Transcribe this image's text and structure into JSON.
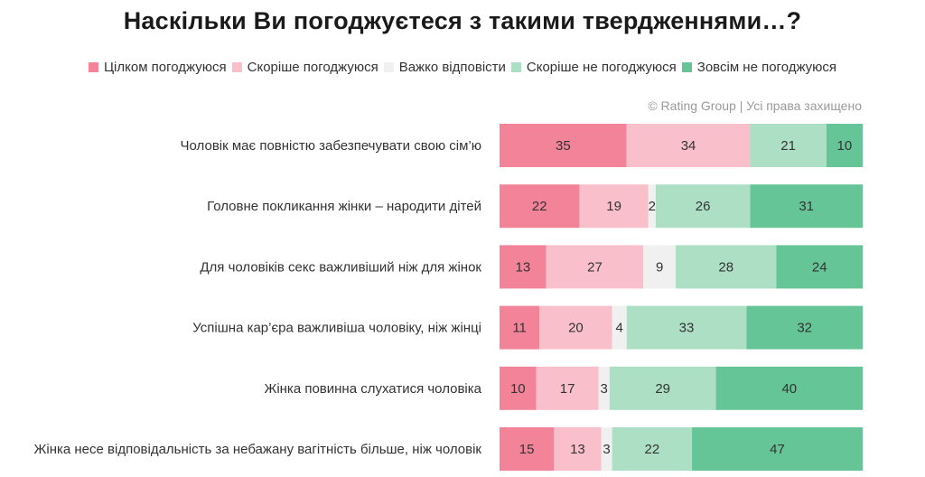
{
  "chart_data": {
    "type": "bar",
    "orientation": "horizontal",
    "stacked": true,
    "title": "Наскільки Ви погоджуєтеся з такими твердженнями…?",
    "source": "© Rating Group | Усі права захищено",
    "legend_position": "top",
    "categories": [
      "Чоловік має повністю забезпечувати свою сім’ю",
      "Головне покликання жінки – народити дітей",
      "Для чоловіків секс важливіший ніж для жінок",
      "Успішна кар’єра важливіша чоловіку, ніж жінці",
      "Жінка повинна слухатися чоловіка",
      "Жінка несе відповідальність за небажану вагітність більше, ніж чоловік"
    ],
    "series": [
      {
        "name": "Цілком погоджуюся",
        "color": "#f28399",
        "values": [
          35,
          22,
          13,
          11,
          10,
          15
        ]
      },
      {
        "name": "Скоріше погоджуюся",
        "color": "#f9c0cb",
        "values": [
          34,
          19,
          27,
          20,
          17,
          13
        ]
      },
      {
        "name": "Важко відповісти",
        "color": "#f0f0f0",
        "values": [
          0,
          2,
          9,
          4,
          3,
          3
        ]
      },
      {
        "name": "Скоріше не погоджуюся",
        "color": "#addfc5",
        "values": [
          21,
          26,
          28,
          33,
          29,
          22
        ]
      },
      {
        "name": "Зовсім не погоджуюся",
        "color": "#66c597",
        "values": [
          10,
          31,
          24,
          32,
          40,
          47
        ]
      }
    ]
  }
}
